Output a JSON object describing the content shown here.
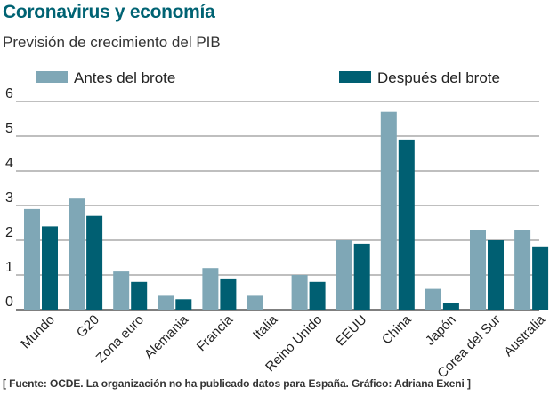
{
  "header": {
    "title": "Coronavirus y economía",
    "subtitle": "Previsión de crecimiento del PIB"
  },
  "footer": {
    "source": "[ Fuente: OCDE. La organización no ha publicado datos para España. Gráfico: Adriana Exeni ]"
  },
  "colors": {
    "before": "#7fa7b6",
    "after": "#005f72",
    "grid": "#555555",
    "title": "#006373"
  },
  "chart_data": {
    "type": "bar",
    "title": "Previsión de crecimiento del PIB",
    "xlabel": "",
    "ylabel": "",
    "ylim": [
      0,
      6
    ],
    "yticks": [
      0,
      1,
      2,
      3,
      4,
      5,
      6
    ],
    "grid": true,
    "legend_position": "top",
    "categories": [
      "Mundo",
      "G20",
      "Zona euro",
      "Alemania",
      "Francia",
      "Italia",
      "Reino Unido",
      "EEUU",
      "China",
      "Japón",
      "Corea del Sur",
      "Australia"
    ],
    "series": [
      {
        "name": "Antes del brote",
        "values": [
          2.9,
          3.2,
          1.1,
          0.4,
          1.2,
          0.4,
          1.0,
          2.0,
          5.7,
          0.6,
          2.3,
          2.3
        ]
      },
      {
        "name": "Después del brote",
        "values": [
          2.4,
          2.7,
          0.8,
          0.3,
          0.9,
          0.0,
          0.8,
          1.9,
          4.9,
          0.2,
          2.0,
          1.8
        ]
      }
    ]
  }
}
